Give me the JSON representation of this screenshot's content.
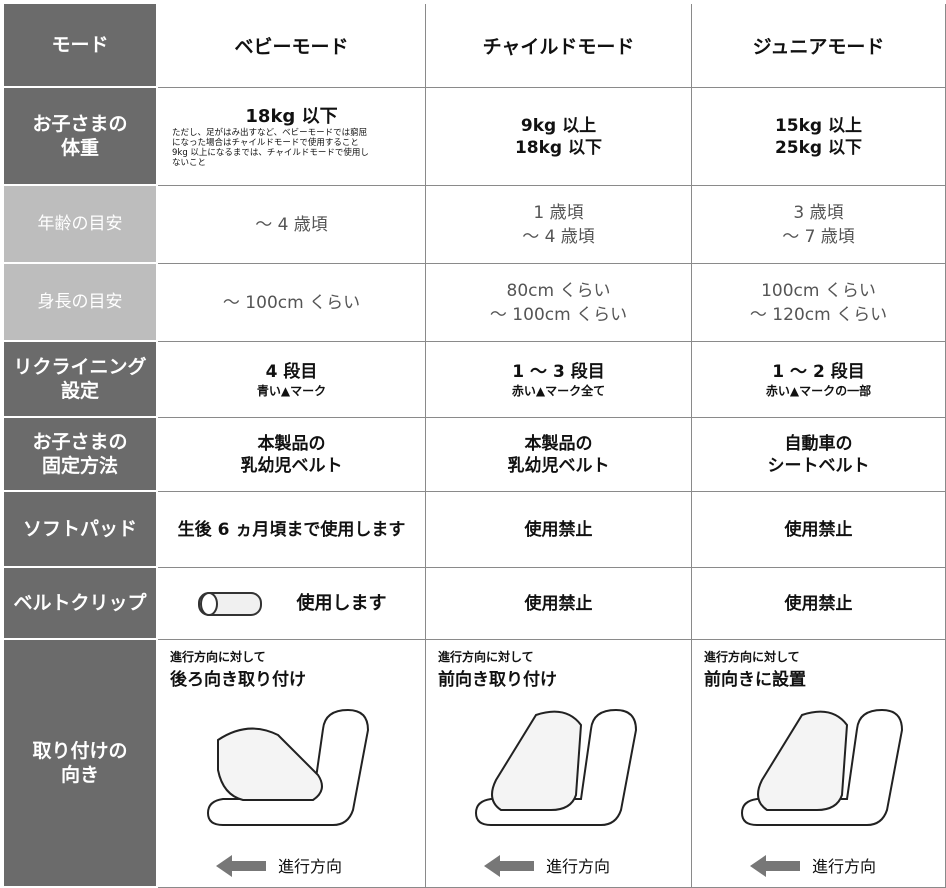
{
  "header": [
    "モード",
    "ベビーモード",
    "チャイルドモード",
    "ジュニアモード"
  ],
  "rows": [
    {
      "label": [
        "お子さまの",
        "体重"
      ],
      "cells": [
        {
          "main": [
            "18kg 以下"
          ],
          "note": [
            "ただし、足がはみ出すなど、ベビーモードでは窮屈",
            "になった場合はチャイルドモードで使用すること",
            "9kg 以上になるまでは、チャイルドモードで使用し",
            "ないこと"
          ]
        },
        {
          "main": [
            "9kg 以上",
            "18kg 以下"
          ]
        },
        {
          "main": [
            "15kg 以上",
            "25kg 以下"
          ]
        }
      ]
    },
    {
      "label": [
        "年齢の目安"
      ],
      "cells": [
        {
          "main": [
            "～ 4 歳頃"
          ]
        },
        {
          "main": [
            "1 歳頃",
            "～ 4 歳頃"
          ]
        },
        {
          "main": [
            "3 歳頃",
            "～ 7 歳頃"
          ]
        }
      ]
    },
    {
      "label": [
        "身長の目安"
      ],
      "cells": [
        {
          "main": [
            "～ 100cm くらい"
          ]
        },
        {
          "main": [
            "80cm くらい",
            "～ 100cm くらい"
          ]
        },
        {
          "main": [
            "100cm くらい",
            "～ 120cm くらい"
          ]
        }
      ]
    },
    {
      "label": [
        "リクライニング",
        "設定"
      ],
      "cells": [
        {
          "main": [
            "4 段目"
          ],
          "sub": [
            "青い▲マーク"
          ]
        },
        {
          "main": [
            "1 ～ 3 段目"
          ],
          "sub": [
            "赤い▲マーク全て"
          ]
        },
        {
          "main": [
            "1 ～ 2 段目"
          ],
          "sub": [
            "赤い▲マークの一部"
          ]
        }
      ]
    },
    {
      "label": [
        "お子さまの",
        "固定方法"
      ],
      "cells": [
        {
          "main": [
            "本製品の",
            "乳幼児ベルト"
          ]
        },
        {
          "main": [
            "本製品の",
            "乳幼児ベルト"
          ]
        },
        {
          "main": [
            "自動車の",
            "シートベルト"
          ]
        }
      ]
    },
    {
      "label": [
        "ソフトパッド"
      ],
      "cells": [
        {
          "main": [
            "生後 6 ヵ月頃まで使用します"
          ]
        },
        {
          "main": [
            "使用禁止"
          ]
        },
        {
          "main": [
            "使用禁止"
          ]
        }
      ]
    },
    {
      "label": [
        "ベルトクリップ"
      ],
      "cells": [
        {
          "main": [
            "使用します"
          ]
        },
        {
          "main": [
            "使用禁止"
          ]
        },
        {
          "main": [
            "使用禁止"
          ]
        }
      ]
    },
    {
      "label": [
        "取り付けの",
        "向き"
      ],
      "cells": [
        {
          "pre": "進行方向に対して",
          "title": "後ろ向き取り付け",
          "cap": "進行方向"
        },
        {
          "pre": "進行方向に対して",
          "title": "前向き取り付け",
          "cap": "進行方向"
        },
        {
          "pre": "進行方向に対して",
          "title": "前向きに設置",
          "cap": "進行方向"
        }
      ]
    }
  ]
}
